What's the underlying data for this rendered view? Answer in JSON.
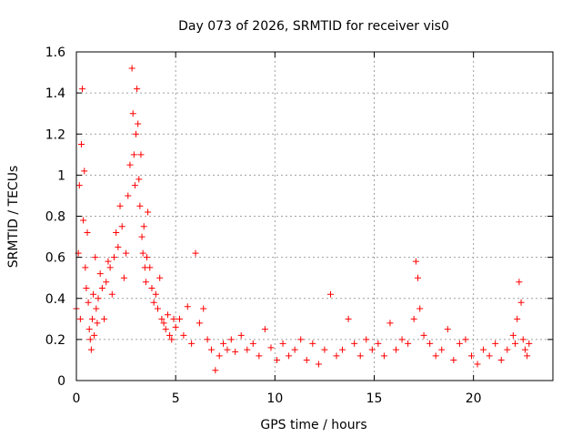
{
  "chart_data": {
    "type": "scatter",
    "title": "Day 073 of 2026, SRMTID for receiver vis0",
    "xlabel": "GPS time / hours",
    "ylabel": "SRMTID / TECUs",
    "xlim": [
      0,
      24
    ],
    "ylim": [
      0,
      1.6
    ],
    "xticks": [
      0,
      5,
      10,
      15,
      20
    ],
    "xtick_labels": [
      "0",
      "5",
      "10",
      "15",
      "20"
    ],
    "yticks": [
      0,
      0.2,
      0.4,
      0.6,
      0.8,
      1.0,
      1.2,
      1.4,
      1.6
    ],
    "ytick_labels": [
      "0",
      "0.2",
      "0.4",
      "0.6",
      "0.8",
      "1",
      "1.2",
      "1.4",
      "1.6"
    ],
    "grid": true,
    "marker": "+",
    "color": "#ff0000",
    "series": [
      {
        "name": "vis0",
        "x": [
          0.0,
          0.1,
          0.15,
          0.2,
          0.25,
          0.3,
          0.35,
          0.4,
          0.45,
          0.5,
          0.55,
          0.6,
          0.65,
          0.7,
          0.75,
          0.8,
          0.85,
          0.9,
          0.95,
          1.0,
          1.05,
          1.1,
          1.2,
          1.3,
          1.4,
          1.5,
          1.6,
          1.7,
          1.8,
          1.9,
          2.0,
          2.1,
          2.2,
          2.3,
          2.4,
          2.5,
          2.6,
          2.7,
          2.8,
          2.85,
          2.9,
          2.95,
          3.0,
          3.05,
          3.1,
          3.15,
          3.2,
          3.25,
          3.3,
          3.35,
          3.4,
          3.45,
          3.5,
          3.55,
          3.6,
          3.7,
          3.8,
          3.9,
          4.0,
          4.1,
          4.2,
          4.3,
          4.4,
          4.5,
          4.6,
          4.7,
          4.8,
          4.9,
          5.0,
          5.2,
          5.4,
          5.6,
          5.8,
          6.0,
          6.2,
          6.4,
          6.6,
          6.8,
          7.0,
          7.2,
          7.4,
          7.6,
          7.8,
          8.0,
          8.3,
          8.6,
          8.9,
          9.2,
          9.5,
          9.8,
          10.1,
          10.4,
          10.7,
          11.0,
          11.3,
          11.6,
          11.9,
          12.2,
          12.5,
          12.8,
          13.1,
          13.4,
          13.7,
          14.0,
          14.3,
          14.6,
          14.9,
          15.2,
          15.5,
          15.8,
          16.1,
          16.4,
          16.7,
          17.0,
          17.1,
          17.2,
          17.3,
          17.5,
          17.8,
          18.1,
          18.4,
          18.7,
          19.0,
          19.3,
          19.6,
          19.9,
          20.2,
          20.5,
          20.8,
          21.1,
          21.4,
          21.7,
          22.0,
          22.1,
          22.2,
          22.3,
          22.4,
          22.5,
          22.6,
          22.7,
          22.8
        ],
        "y": [
          0.35,
          0.62,
          0.95,
          0.3,
          1.15,
          1.42,
          0.78,
          1.02,
          0.55,
          0.45,
          0.72,
          0.38,
          0.25,
          0.2,
          0.15,
          0.3,
          0.42,
          0.22,
          0.6,
          0.35,
          0.28,
          0.4,
          0.52,
          0.45,
          0.3,
          0.48,
          0.58,
          0.55,
          0.42,
          0.6,
          0.72,
          0.65,
          0.85,
          0.75,
          0.5,
          0.62,
          0.9,
          1.05,
          1.52,
          1.3,
          1.1,
          0.95,
          1.2,
          1.42,
          1.25,
          0.98,
          0.85,
          1.1,
          0.7,
          0.62,
          0.75,
          0.55,
          0.48,
          0.6,
          0.82,
          0.55,
          0.45,
          0.38,
          0.42,
          0.35,
          0.5,
          0.3,
          0.28,
          0.25,
          0.32,
          0.22,
          0.2,
          0.3,
          0.26,
          0.3,
          0.22,
          0.36,
          0.18,
          0.62,
          0.28,
          0.35,
          0.2,
          0.15,
          0.05,
          0.12,
          0.18,
          0.15,
          0.2,
          0.14,
          0.22,
          0.15,
          0.18,
          0.12,
          0.25,
          0.16,
          0.1,
          0.18,
          0.12,
          0.15,
          0.2,
          0.1,
          0.18,
          0.08,
          0.15,
          0.42,
          0.12,
          0.15,
          0.3,
          0.18,
          0.12,
          0.2,
          0.15,
          0.18,
          0.12,
          0.28,
          0.15,
          0.2,
          0.18,
          0.3,
          0.58,
          0.5,
          0.35,
          0.22,
          0.18,
          0.12,
          0.15,
          0.25,
          0.1,
          0.18,
          0.2,
          0.12,
          0.08,
          0.15,
          0.12,
          0.18,
          0.1,
          0.15,
          0.22,
          0.18,
          0.3,
          0.48,
          0.38,
          0.2,
          0.15,
          0.12,
          0.18
        ]
      }
    ]
  }
}
